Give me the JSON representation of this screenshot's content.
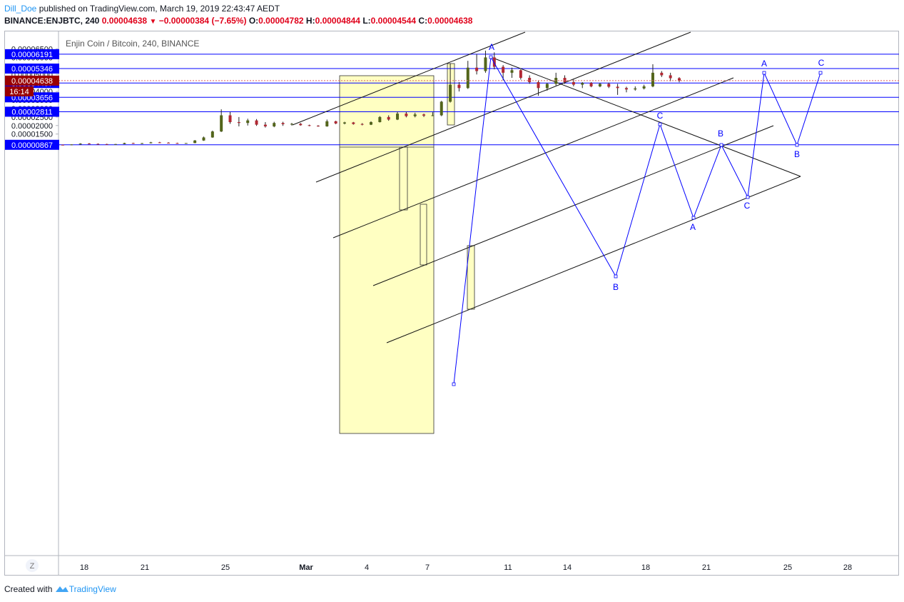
{
  "header": {
    "author": "Dill_Doe",
    "published": "published on TradingView.com, March 19, 2019 22:43:47 AEDT",
    "symbol": "BINANCE:ENJBTC, 240",
    "last": "0.00004638",
    "change": "−0.00000384 (−7.65%)",
    "o_label": "O:",
    "o": "0.00004782",
    "h_label": "H:",
    "h": "0.00004844",
    "l_label": "L:",
    "l": "0.00004544",
    "c_label": "C:",
    "c": "0.00004638"
  },
  "footer": {
    "created": "Created with",
    "brand": "TradingView"
  },
  "colors": {
    "blue": "#0000ff",
    "red": "#990000",
    "bull": "#53651b",
    "bear": "#b22833",
    "box": "#ffffc2"
  },
  "chart_data": {
    "type": "candlestick",
    "title": "Enjin Coin / Bitcoin, 240, BINANCE",
    "ylim": [
      4.4e-06,
      6.8e-06
    ],
    "y_ticks": [
      "0.00006500",
      "0.00006000",
      "0.00005500",
      "0.00005000",
      "0.00004500",
      "0.00004000",
      "0.00003500",
      "0.00003000",
      "0.00002500",
      "0.00002000",
      "0.00001500",
      "0.00001000"
    ],
    "x_ticks": [
      "18",
      "21",
      "25",
      "Mar",
      "4",
      "7",
      "11",
      "14",
      "18",
      "21",
      "25",
      "28"
    ],
    "axis_corner": "Z",
    "horizontal_levels": [
      {
        "label": "0.00006191",
        "value": 6.191e-05
      },
      {
        "label": "0.00005346",
        "value": 5.346e-05
      },
      {
        "label": "0.00004497",
        "value": 4.497e-05
      },
      {
        "label": "0.00003656",
        "value": 3.656e-05
      },
      {
        "label": "0.00002811",
        "value": 2.811e-05
      },
      {
        "label": "0.00000867",
        "value": 8.67e-06
      }
    ],
    "last_price": {
      "label": "0.00004638",
      "value": 4.638e-05,
      "countdown": "16:14"
    },
    "wave_labels": [
      "A",
      "B",
      "C",
      "A",
      "B",
      "C",
      "A",
      "B",
      "C"
    ],
    "series": [
      {
        "name": "ENJBTC",
        "ohlc": [
          [
            8.7e-06,
            8.8e-06,
            8.5e-06,
            8.6e-06
          ],
          [
            8.6e-06,
            9e-06,
            8.5e-06,
            8.9e-06
          ],
          [
            8.9e-06,
            9.6e-06,
            8.7e-06,
            9.4e-06
          ],
          [
            9.4e-06,
            9.7e-06,
            9.1e-06,
            9.2e-06
          ],
          [
            9.2e-06,
            9.5e-06,
            9e-06,
            9.1e-06
          ],
          [
            9.1e-06,
            9.3e-06,
            8.9e-06,
            9e-06
          ],
          [
            9e-06,
            9.2e-06,
            8.9e-06,
            9.1e-06
          ],
          [
            9.1e-06,
            9.9e-06,
            9e-06,
            9.7e-06
          ],
          [
            9.7e-06,
            9.9e-06,
            9.3e-06,
            9.4e-06
          ],
          [
            9.4e-06,
            9.8e-06,
            9.3e-06,
            9.6e-06
          ],
          [
            9.6e-06,
            1.04e-05,
            9.5e-06,
            1.01e-05
          ],
          [
            1.01e-05,
            1.04e-05,
            9.7e-06,
            9.9e-06
          ],
          [
            9.9e-06,
            1.02e-05,
            9.6e-06,
            9.7e-06
          ],
          [
            9.7e-06,
            9.9e-06,
            9.5e-06,
            9.6e-06
          ],
          [
            9.6e-06,
            9.7e-06,
            9.4e-06,
            9.7e-06
          ],
          [
            9.7e-06,
            1.15e-05,
            9.6e-06,
            1.12e-05
          ],
          [
            1.12e-05,
            1.35e-05,
            1.1e-05,
            1.3e-05
          ],
          [
            1.3e-05,
            1.7e-05,
            1.28e-05,
            1.65e-05
          ],
          [
            1.65e-05,
            2.95e-05,
            1.62e-05,
            2.6e-05
          ],
          [
            2.6e-05,
            2.8e-05,
            2.1e-05,
            2.2e-05
          ],
          [
            2.2e-05,
            2.5e-05,
            1.95e-05,
            2.15e-05
          ],
          [
            2.15e-05,
            2.4e-05,
            2e-05,
            2.3e-05
          ],
          [
            2.3e-05,
            2.38e-05,
            1.98e-05,
            2.05e-05
          ],
          [
            2.05e-05,
            2.2e-05,
            1.88e-05,
            1.95e-05
          ],
          [
            1.95e-05,
            2.22e-05,
            1.9e-05,
            2.15e-05
          ],
          [
            2.15e-05,
            2.22e-05,
            1.98e-05,
            2.08e-05
          ],
          [
            2.08e-05,
            2.15e-05,
            2e-05,
            2.1e-05
          ],
          [
            2.1e-05,
            2.15e-05,
            1.99e-05,
            2.02e-05
          ],
          [
            2.02e-05,
            2.05e-05,
            1.96e-05,
            1.99e-05
          ],
          [
            1.99e-05,
            2.02e-05,
            1.93e-05,
            1.95e-05
          ],
          [
            1.95e-05,
            2.35e-05,
            1.93e-05,
            2.25e-05
          ],
          [
            2.25e-05,
            2.28e-05,
            2.08e-05,
            2.12e-05
          ],
          [
            2.12e-05,
            2.22e-05,
            2.07e-05,
            2.18e-05
          ],
          [
            2.18e-05,
            2.21e-05,
            2.05e-05,
            2.09e-05
          ],
          [
            2.09e-05,
            2.14e-05,
            2.01e-05,
            2.05e-05
          ],
          [
            2.05e-05,
            2.25e-05,
            2.03e-05,
            2.2e-05
          ],
          [
            2.2e-05,
            2.55e-05,
            2.18e-05,
            2.5e-05
          ],
          [
            2.5e-05,
            2.6e-05,
            2.28e-05,
            2.35e-05
          ],
          [
            2.35e-05,
            2.81e-05,
            2.32e-05,
            2.7e-05
          ],
          [
            2.7e-05,
            2.8e-05,
            2.48e-05,
            2.55e-05
          ],
          [
            2.55e-05,
            2.75e-05,
            2.48e-05,
            2.65e-05
          ],
          [
            2.65e-05,
            2.7e-05,
            2.5e-05,
            2.58e-05
          ],
          [
            2.58e-05,
            2.78e-05,
            2.55e-05,
            2.6e-05
          ],
          [
            2.6e-05,
            3.45e-05,
            2.55e-05,
            3.4e-05
          ],
          [
            3.4e-05,
            5.65e-05,
            3.35e-05,
            4.4e-05
          ],
          [
            4.4e-05,
            4.55e-05,
            4e-05,
            4.2e-05
          ],
          [
            4.2e-05,
            5.8e-05,
            4.15e-05,
            5.4e-05
          ],
          [
            5.4e-05,
            6.2e-05,
            5e-05,
            5.2e-05
          ],
          [
            5.2e-05,
            6.4e-05,
            5.1e-05,
            6e-05
          ],
          [
            6e-05,
            6.3e-05,
            5.3e-05,
            5.45e-05
          ],
          [
            5.45e-05,
            5.55e-05,
            4.65e-05,
            5.1e-05
          ],
          [
            5.1e-05,
            5.4e-05,
            4.8e-05,
            5.25e-05
          ],
          [
            5.25e-05,
            5.3e-05,
            4.7e-05,
            4.8e-05
          ],
          [
            4.8e-05,
            4.95e-05,
            4.45e-05,
            4.55e-05
          ],
          [
            4.55e-05,
            4.65e-05,
            3.75e-05,
            4.2e-05
          ],
          [
            4.2e-05,
            4.5e-05,
            4.05e-05,
            4.45e-05
          ],
          [
            4.45e-05,
            5.1e-05,
            4.35e-05,
            4.8e-05
          ],
          [
            4.8e-05,
            4.95e-05,
            4.45e-05,
            4.55e-05
          ],
          [
            4.55e-05,
            4.7e-05,
            4.3e-05,
            4.4e-05
          ],
          [
            4.4e-05,
            4.55e-05,
            4.2e-05,
            4.5e-05
          ],
          [
            4.5e-05,
            4.55e-05,
            4.25e-05,
            4.3e-05
          ],
          [
            4.3e-05,
            4.5e-05,
            4.25e-05,
            4.45e-05
          ],
          [
            4.45e-05,
            4.52e-05,
            4.2e-05,
            4.28e-05
          ],
          [
            4.28e-05,
            4.45e-05,
            3.8e-05,
            4.2e-05
          ],
          [
            4.2e-05,
            4.28e-05,
            3.95e-05,
            4.12e-05
          ],
          [
            4.12e-05,
            4.3e-05,
            4.05e-05,
            4.18e-05
          ],
          [
            4.18e-05,
            4.4e-05,
            4.12e-05,
            4.3e-05
          ],
          [
            4.3e-05,
            5.6e-05,
            4.25e-05,
            5.1e-05
          ],
          [
            5.1e-05,
            5.2e-05,
            4.85e-05,
            4.95e-05
          ],
          [
            4.95e-05,
            5.1e-05,
            4.6e-05,
            4.78e-05
          ],
          [
            4.78e-05,
            4.84e-05,
            4.54e-05,
            4.64e-05
          ]
        ]
      }
    ]
  }
}
